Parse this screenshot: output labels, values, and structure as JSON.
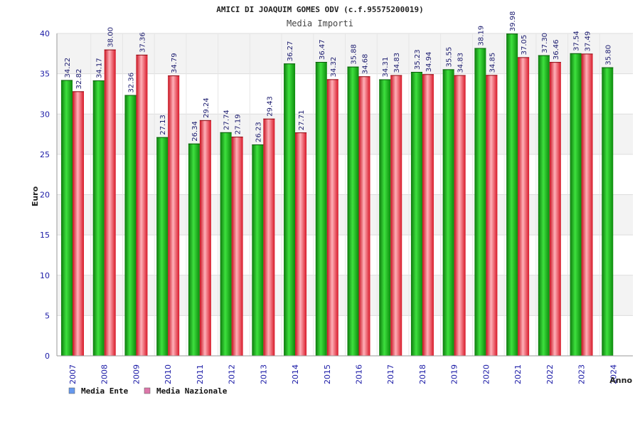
{
  "chart_data": {
    "type": "bar",
    "title": "AMICI DI JOAQUIM GOMES ODV (c.f.95575200019)",
    "subtitle": "Media Importi",
    "xlabel": "Anno",
    "ylabel": "Euro",
    "ylim": [
      0,
      40
    ],
    "yticks": [
      0,
      5,
      10,
      15,
      20,
      25,
      30,
      35,
      40
    ],
    "categories": [
      "2007",
      "2008",
      "2009",
      "2010",
      "2011",
      "2012",
      "2013",
      "2014",
      "2015",
      "2016",
      "2017",
      "2018",
      "2019",
      "2020",
      "2021",
      "2022",
      "2023",
      "2024"
    ],
    "series": [
      {
        "name": "Media Ente",
        "color": "#22bb22",
        "legend_color": "#6699ee",
        "values": [
          34.22,
          34.17,
          32.36,
          27.13,
          26.34,
          27.74,
          26.23,
          36.27,
          36.47,
          35.88,
          34.31,
          35.23,
          35.55,
          38.19,
          39.98,
          37.3,
          37.54,
          35.8
        ],
        "labels": [
          "34.22",
          "34.17",
          "32.36",
          "27.13",
          "26.34",
          "27.74",
          "26.23",
          "36.27",
          "36.47",
          "35.88",
          "34.31",
          "35.23",
          "35.55",
          "38.19",
          "39.98",
          "37.30",
          "37.54",
          "35.80"
        ]
      },
      {
        "name": "Media Nazionale",
        "color": "#ee2233",
        "legend_color": "#dd77aa",
        "values": [
          32.82,
          38.0,
          37.36,
          34.79,
          29.24,
          27.19,
          29.43,
          27.71,
          34.32,
          34.68,
          34.83,
          34.94,
          34.83,
          34.85,
          37.05,
          36.46,
          37.49,
          null
        ],
        "labels": [
          "32.82",
          "38.00",
          "37.36",
          "34.79",
          "29.24",
          "27.19",
          "29.43",
          "27.71",
          "34.32",
          "34.68",
          "34.83",
          "34.94",
          "34.83",
          "34.85",
          "37.05",
          "36.46",
          "37.49",
          ""
        ]
      }
    ],
    "grid": true,
    "legend_position": "bottom-left"
  }
}
